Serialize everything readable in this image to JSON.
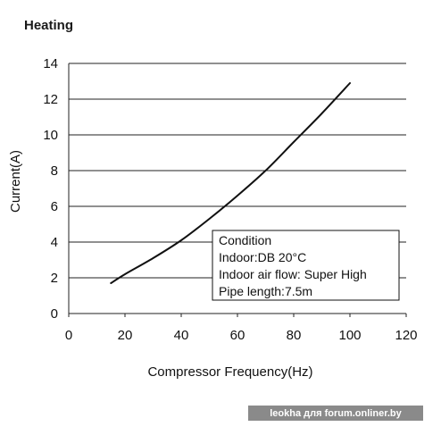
{
  "chart_data": {
    "type": "line",
    "title": "Heating",
    "xlabel": "Compressor Frequency(Hz)",
    "ylabel": "Current(A)",
    "xlim": [
      0,
      120
    ],
    "ylim": [
      0,
      14
    ],
    "x_ticks": [
      "0",
      "20",
      "40",
      "60",
      "80",
      "100",
      "120"
    ],
    "y_ticks": [
      "0",
      "2",
      "4",
      "6",
      "8",
      "10",
      "12",
      "14"
    ],
    "grid": "horizontal",
    "series": [
      {
        "x": [
          15,
          20,
          30,
          40,
          50,
          60,
          70,
          80,
          90,
          100
        ],
        "y": [
          1.7,
          2.2,
          3.1,
          4.1,
          5.3,
          6.6,
          8.0,
          9.6,
          11.2,
          12.9
        ]
      }
    ],
    "condition_box": {
      "placement": "inside-right",
      "lines": [
        "Condition",
        "Indoor:DB 20°C",
        "Indoor air flow: Super High",
        "Pipe length:7.5m"
      ]
    }
  },
  "watermark": "leokha для forum.onliner.by",
  "colors": {
    "line": "#111111",
    "grid": "#222222",
    "watermark_bg": "#8a8a8a"
  }
}
